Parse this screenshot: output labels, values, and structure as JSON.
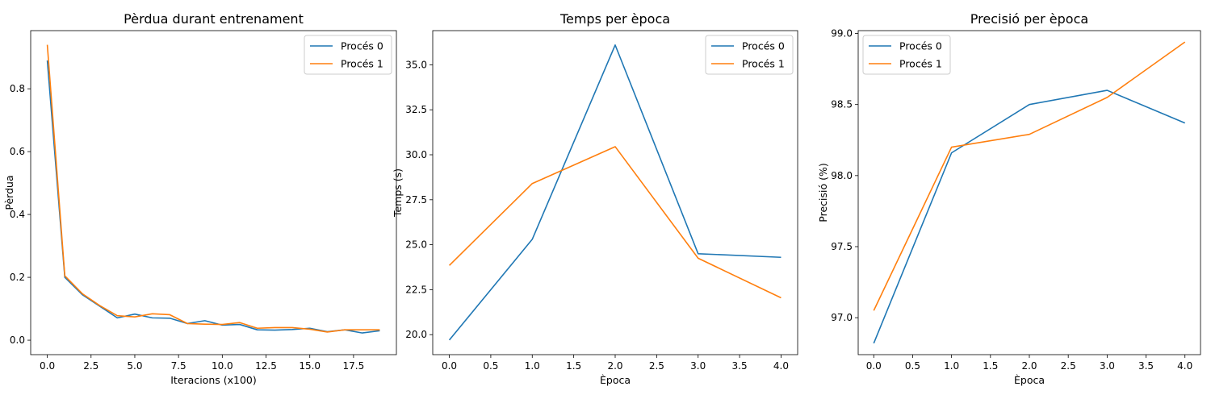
{
  "chart_data": [
    {
      "type": "line",
      "title": "Pèrdua durant entrenament",
      "xlabel": "Iteracions (x100)",
      "ylabel": "Pèrdua",
      "xlim": [
        -0.95,
        19.95
      ],
      "ylim": [
        -0.046,
        0.985
      ],
      "xticks": [
        0,
        2.5,
        5,
        7.5,
        10,
        12.5,
        15,
        17.5
      ],
      "xtick_labels": [
        "0.0",
        "2.5",
        "5.0",
        "7.5",
        "10.0",
        "12.5",
        "15.0",
        "17.5"
      ],
      "yticks": [
        0,
        0.2,
        0.4,
        0.6,
        0.8
      ],
      "ytick_labels": [
        "0.0",
        "0.2",
        "0.4",
        "0.6",
        "0.8"
      ],
      "legend": "top-right",
      "grid": false,
      "series": [
        {
          "name": "Procés 0",
          "color": "#1f77b4",
          "x": [
            0,
            1,
            2,
            3,
            4,
            5,
            6,
            7,
            8,
            9,
            10,
            11,
            12,
            13,
            14,
            15,
            16,
            17,
            18,
            19
          ],
          "y": [
            0.89,
            0.2,
            0.145,
            0.108,
            0.071,
            0.083,
            0.071,
            0.07,
            0.053,
            0.062,
            0.048,
            0.05,
            0.033,
            0.032,
            0.034,
            0.038,
            0.027,
            0.033,
            0.023,
            0.03
          ]
        },
        {
          "name": "Procés 1",
          "color": "#ff7f0e",
          "x": [
            0,
            1,
            2,
            3,
            4,
            5,
            6,
            7,
            8,
            9,
            10,
            11,
            12,
            13,
            14,
            15,
            16,
            17,
            18,
            19
          ],
          "y": [
            0.94,
            0.205,
            0.148,
            0.11,
            0.078,
            0.074,
            0.084,
            0.081,
            0.053,
            0.051,
            0.05,
            0.056,
            0.038,
            0.04,
            0.04,
            0.035,
            0.026,
            0.033,
            0.033,
            0.033
          ]
        }
      ]
    },
    {
      "type": "line",
      "title": "Temps per època",
      "xlabel": "Època",
      "ylabel": "Temps (s)",
      "xlim": [
        -0.2,
        4.2
      ],
      "ylim": [
        18.89,
        36.9
      ],
      "xticks": [
        0,
        0.5,
        1,
        1.5,
        2,
        2.5,
        3,
        3.5,
        4
      ],
      "xtick_labels": [
        "0.0",
        "0.5",
        "1.0",
        "1.5",
        "2.0",
        "2.5",
        "3.0",
        "3.5",
        "4.0"
      ],
      "yticks": [
        20,
        22.5,
        25,
        27.5,
        30,
        32.5,
        35
      ],
      "ytick_labels": [
        "20.0",
        "22.5",
        "25.0",
        "27.5",
        "30.0",
        "32.5",
        "35.0"
      ],
      "legend": "top-right",
      "grid": false,
      "series": [
        {
          "name": "Procés 0",
          "color": "#1f77b4",
          "x": [
            0,
            1,
            2,
            3,
            4
          ],
          "y": [
            19.7,
            25.3,
            36.1,
            24.5,
            24.3
          ]
        },
        {
          "name": "Procés 1",
          "color": "#ff7f0e",
          "x": [
            0,
            1,
            2,
            3,
            4
          ],
          "y": [
            23.85,
            28.4,
            30.45,
            24.25,
            22.05
          ]
        }
      ]
    },
    {
      "type": "line",
      "title": "Precisió per època",
      "xlabel": "Època",
      "ylabel": "Precisió (%)",
      "xlim": [
        -0.2,
        4.2
      ],
      "ylim": [
        96.74,
        99.02
      ],
      "xticks": [
        0,
        0.5,
        1,
        1.5,
        2,
        2.5,
        3,
        3.5,
        4
      ],
      "xtick_labels": [
        "0.0",
        "0.5",
        "1.0",
        "1.5",
        "2.0",
        "2.5",
        "3.0",
        "3.5",
        "4.0"
      ],
      "yticks": [
        97.0,
        97.5,
        98.0,
        98.5,
        99.0
      ],
      "ytick_labels": [
        "97.0",
        "97.5",
        "98.0",
        "98.5",
        "99.0"
      ],
      "legend": "top-left",
      "grid": false,
      "series": [
        {
          "name": "Procés 0",
          "color": "#1f77b4",
          "x": [
            0,
            1,
            2,
            3,
            4
          ],
          "y": [
            96.82,
            98.16,
            98.5,
            98.6,
            98.37
          ]
        },
        {
          "name": "Procés 1",
          "color": "#ff7f0e",
          "x": [
            0,
            1,
            2,
            3,
            4
          ],
          "y": [
            97.05,
            98.2,
            98.29,
            98.55,
            98.94
          ]
        }
      ]
    }
  ]
}
